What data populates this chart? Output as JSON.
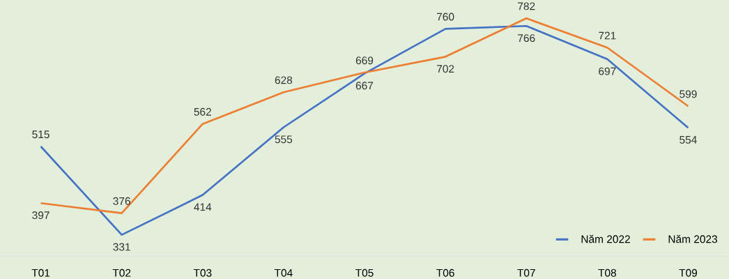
{
  "chart_data": {
    "type": "line",
    "categories": [
      "T01",
      "T02",
      "T03",
      "T04",
      "T05",
      "T06",
      "T07",
      "T08",
      "T09"
    ],
    "series": [
      {
        "name": "Năm 2022",
        "color": "#4472c4",
        "values": [
          515,
          331,
          414,
          555,
          667,
          760,
          766,
          697,
          554
        ]
      },
      {
        "name": "Năm 2023",
        "color": "#ed7d31",
        "values": [
          397,
          376,
          562,
          628,
          669,
          702,
          782,
          721,
          599
        ]
      }
    ],
    "data_labels": true,
    "legend": "bottom right",
    "marker": "none",
    "line_style": "solid"
  }
}
